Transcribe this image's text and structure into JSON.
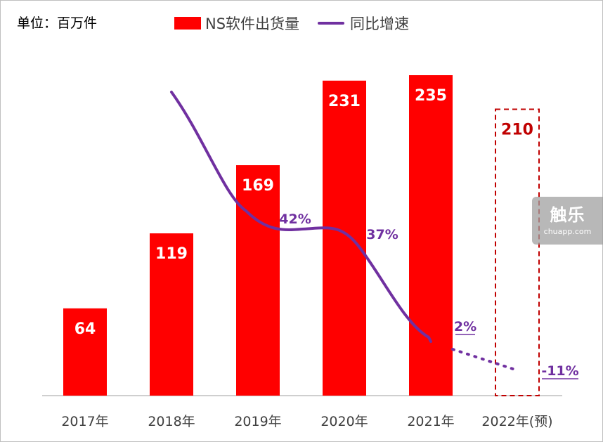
{
  "unit_label": "单位：百万件",
  "legend": {
    "bar_name": "NS软件出货量",
    "line_name": "同比增速"
  },
  "colors": {
    "bar": "#ff0000",
    "forecast_outline": "#c00000",
    "line": "#7030a0",
    "axis": "#bfbfbf",
    "bar_text": "#ffffff"
  },
  "chart_data": {
    "type": "bar",
    "categories": [
      "2017年",
      "2018年",
      "2019年",
      "2020年",
      "2021年",
      "2022年(预)"
    ],
    "series": [
      {
        "name": "NS软件出货量",
        "type": "bar",
        "values": [
          64,
          119,
          169,
          231,
          235,
          210
        ],
        "value_labels": [
          "64",
          "119",
          "169",
          "231",
          "235",
          "210"
        ],
        "forecast_index": 5
      },
      {
        "name": "同比增速",
        "type": "line",
        "x": [
          "2018年",
          "2019年",
          "2020年",
          "2021年",
          "2022年(预)"
        ],
        "values": [
          86,
          42,
          37,
          2,
          -11
        ],
        "value_labels": [
          "",
          "42%",
          "37%",
          "2%",
          "-11%"
        ],
        "forecast_index": 4
      }
    ],
    "ylim": [
      0,
      240
    ],
    "grid": false,
    "legend_position": "top"
  },
  "watermark": {
    "main": "触乐",
    "sub": "chuapp.com"
  }
}
